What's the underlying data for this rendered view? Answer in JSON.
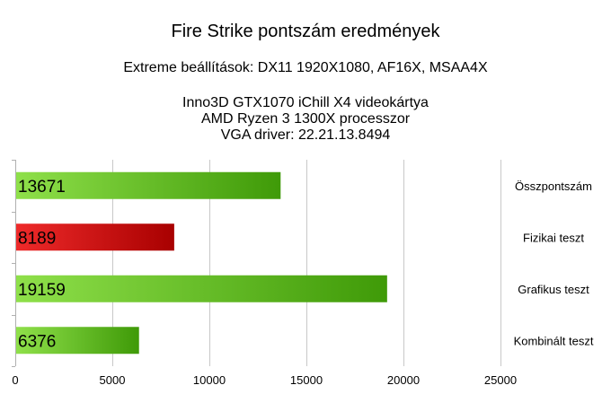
{
  "chart_data": {
    "type": "bar",
    "orientation": "horizontal",
    "title": "Fire Strike pontszám eredmények",
    "subtitle": "Extreme beállítások: DX11 1920X1080, AF16X, MSAA4X",
    "info_lines": [
      "Inno3D GTX1070 iChill X4 videokártya",
      "AMD Ryzen 3 1300X processzor",
      "VGA driver: 22.21.13.8494"
    ],
    "categories": [
      "Összpontszám",
      "Fizikai teszt",
      "Grafikus teszt",
      "Kombinált teszt"
    ],
    "values": [
      13671,
      8189,
      19159,
      6376
    ],
    "value_labels": [
      "13671",
      "8189",
      "19159",
      "6376"
    ],
    "bar_colors": [
      "green",
      "red",
      "green",
      "green"
    ],
    "xlim": [
      0,
      25000
    ],
    "xticks": [
      0,
      5000,
      10000,
      15000,
      20000,
      25000
    ],
    "xtick_labels": [
      "0",
      "5000",
      "10000",
      "15000",
      "20000",
      "25000"
    ],
    "grid": "vertical gridlines",
    "legend": "none",
    "category_labels_position": "right"
  },
  "colors": {
    "green_light": "#8fe04a",
    "green_dark": "#3f9a08",
    "red_light": "#ee2a2a",
    "red_dark": "#a80000",
    "grid": "#c8c8c8",
    "axis": "#b0b0b0"
  }
}
